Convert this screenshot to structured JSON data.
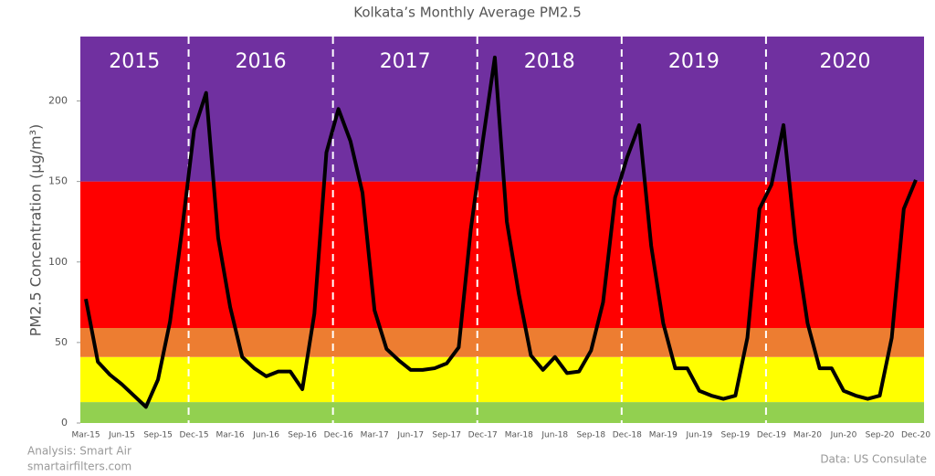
{
  "chart_data": {
    "type": "line",
    "title": "Kolkata’s Monthly Average PM2.5",
    "y_label": "PM2.5 Concentration (μg/m³)",
    "year_labels": [
      "2015",
      "2016",
      "2017",
      "2018",
      "2019",
      "2020"
    ],
    "categories": [
      "Mar-15",
      null,
      null,
      "Jun-15",
      null,
      null,
      "Sep-15",
      null,
      null,
      "Dec-15",
      null,
      null,
      "Mar-16",
      null,
      null,
      "Jun-16",
      null,
      null,
      "Sep-16",
      null,
      null,
      "Dec-16",
      null,
      null,
      "Mar-17",
      null,
      null,
      "Jun-17",
      null,
      null,
      "Sep-17",
      null,
      null,
      "Dec-17",
      null,
      null,
      "Mar-18",
      null,
      null,
      "Jun-18",
      null,
      null,
      "Sep-18",
      null,
      null,
      "Dec-18",
      null,
      null,
      "Mar-19",
      null,
      null,
      "Jun-19",
      null,
      null,
      "Sep-19",
      null,
      null,
      "Dec-19",
      null,
      null,
      "Mar-20",
      null,
      null,
      "Jun-20",
      null,
      null,
      "Sep-20",
      null,
      null,
      "Dec-20"
    ],
    "series": [
      {
        "name": "PM2.5",
        "color": "#000000",
        "values": [
          77,
          38,
          30,
          24,
          17,
          10,
          27,
          63,
          120,
          182,
          205,
          115,
          72,
          41,
          34,
          29,
          32,
          32,
          21,
          68,
          168,
          195,
          175,
          143,
          70,
          46,
          39,
          33,
          33,
          34,
          37,
          47,
          120,
          175,
          227,
          125,
          80,
          42,
          33,
          41,
          31,
          32,
          45,
          75,
          140,
          165,
          185,
          110,
          62,
          34,
          34,
          20,
          17,
          15,
          17,
          53,
          133,
          148,
          185,
          112,
          62,
          34,
          34,
          20,
          17,
          15,
          17,
          53,
          133,
          151
        ]
      }
    ],
    "bands": [
      {
        "from": 0,
        "to": 13,
        "color": "#92d050"
      },
      {
        "from": 13,
        "to": 41,
        "color": "#ffff00"
      },
      {
        "from": 41,
        "to": 59,
        "color": "#ed7d31"
      },
      {
        "from": 59,
        "to": 150,
        "color": "#ff0000"
      },
      {
        "from": 150,
        "to": 240,
        "color": "#7030a0"
      }
    ],
    "ylim": [
      0,
      240
    ],
    "yticks": [
      0,
      50,
      100,
      150,
      200
    ],
    "footnote_left": [
      "Analysis: Smart Air",
      "smartairfilters.com"
    ],
    "footnote_right": "Data: US Consulate"
  }
}
